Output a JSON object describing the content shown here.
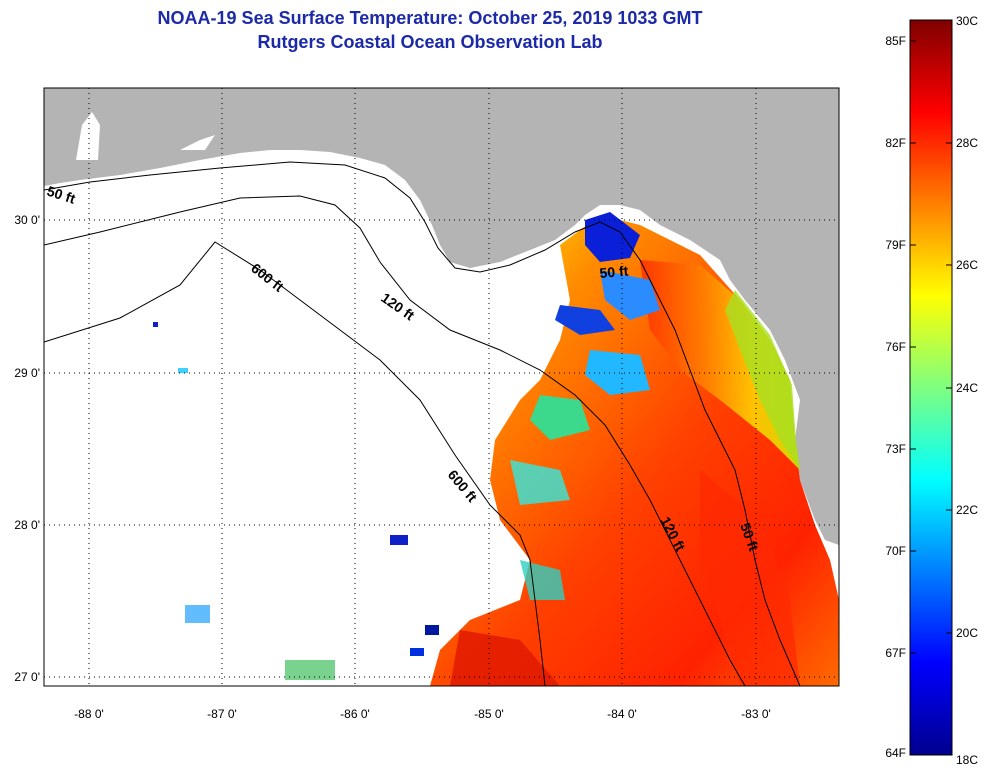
{
  "title_line1": "NOAA-19 Sea Surface Temperature:  October 25, 2019 1033 GMT",
  "title_line2": "Rutgers Coastal Ocean Observation Lab",
  "axes": {
    "lon_labels": [
      "-88 0'",
      "-87 0'",
      "-86 0'",
      "-85 0'",
      "-84 0'",
      "-83 0'"
    ],
    "lat_labels": [
      "30 0'",
      "29 0'",
      "28 0'",
      "27 0'"
    ]
  },
  "contours": {
    "c50_left": "50 ft",
    "c600_upper": "600 ft",
    "c120_upper": "120 ft",
    "c50_upper": "50 ft",
    "c600_lower": "600 ft",
    "c120_lower": "120 ft",
    "c50_lower": "50 ft"
  },
  "colorbar": {
    "fahrenheit_labels": [
      "85F",
      "82F",
      "79F",
      "76F",
      "73F",
      "70F",
      "67F",
      "64F"
    ],
    "celsius_labels": [
      "30C",
      "28C",
      "26C",
      "24C",
      "22C",
      "20C",
      "18C"
    ],
    "range_c": [
      18,
      30
    ],
    "colors": [
      "#00008f",
      "#0000ff",
      "#007fff",
      "#00ffff",
      "#7fff7f",
      "#ffff00",
      "#ff7f00",
      "#ff0000",
      "#7f0000"
    ]
  },
  "colors": {
    "land": "#b4b4b4",
    "no_data": "#ffffff",
    "title": "#1c2aa8"
  }
}
